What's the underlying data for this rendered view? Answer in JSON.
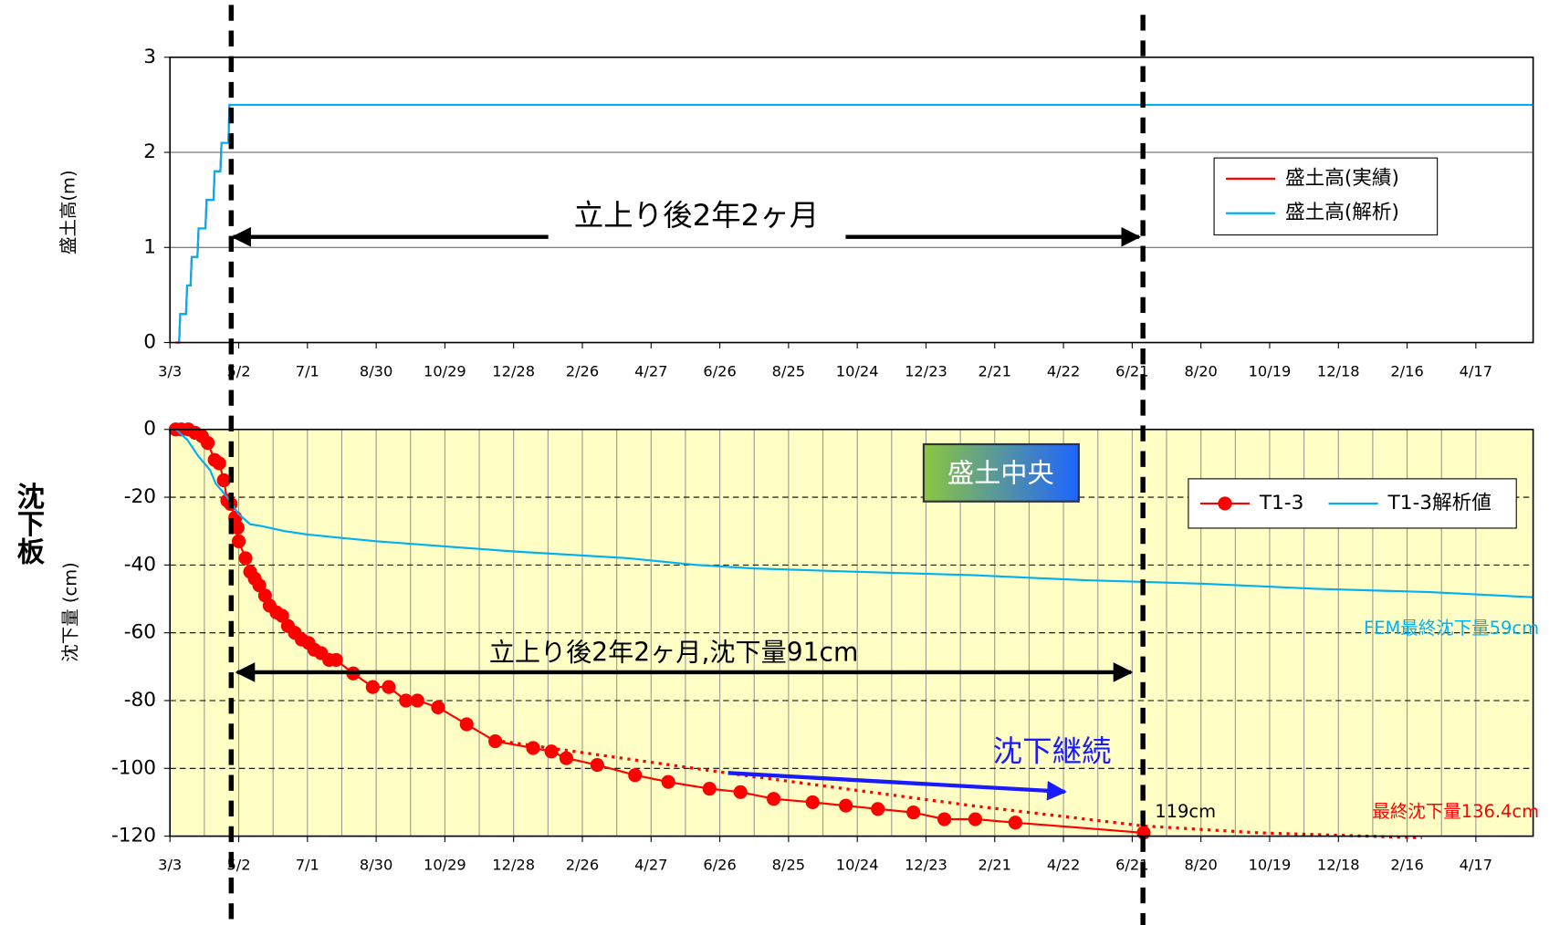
{
  "chart_data": [
    {
      "type": "line",
      "ylabel": "盛土高(m)",
      "xlim": [
        0,
        1190
      ],
      "xticks": [
        {
          "value": 0,
          "label": "3/3"
        },
        {
          "value": 60,
          "label": "5/2"
        },
        {
          "value": 120,
          "label": "7/1"
        },
        {
          "value": 180,
          "label": "8/30"
        },
        {
          "value": 240,
          "label": "10/29"
        },
        {
          "value": 300,
          "label": "12/28"
        },
        {
          "value": 360,
          "label": "2/26"
        },
        {
          "value": 420,
          "label": "4/27"
        },
        {
          "value": 480,
          "label": "6/26"
        },
        {
          "value": 540,
          "label": "8/25"
        },
        {
          "value": 600,
          "label": "10/24"
        },
        {
          "value": 660,
          "label": "12/23"
        },
        {
          "value": 720,
          "label": "2/21"
        },
        {
          "value": 780,
          "label": "4/22"
        },
        {
          "value": 840,
          "label": "6/21"
        },
        {
          "value": 900,
          "label": "8/20"
        },
        {
          "value": 960,
          "label": "10/19"
        },
        {
          "value": 1020,
          "label": "12/18"
        },
        {
          "value": 1080,
          "label": "2/16"
        },
        {
          "value": 1140,
          "label": "4/17"
        }
      ],
      "ylim": [
        0,
        3
      ],
      "yticks": [
        0,
        1,
        2,
        3
      ],
      "grid": "solid",
      "series": [
        {
          "name": "盛土高(実績)",
          "color": "#ff0000",
          "x": [
            5,
            8,
            9,
            14,
            15,
            18,
            19,
            24,
            25,
            31,
            32,
            38,
            39,
            44,
            45,
            51,
            52,
            53
          ],
          "values": [
            0,
            0,
            0.3,
            0.3,
            0.6,
            0.6,
            0.9,
            0.9,
            1.2,
            1.2,
            1.5,
            1.5,
            1.8,
            1.8,
            2.1,
            2.1,
            2.5,
            2.5
          ]
        },
        {
          "name": "盛土高(解析)",
          "color": "#00b0f0",
          "x": [
            8,
            9,
            14,
            15,
            18,
            19,
            24,
            25,
            31,
            32,
            38,
            39,
            44,
            45,
            51,
            52,
            1190
          ],
          "values": [
            0,
            0.3,
            0.3,
            0.6,
            0.6,
            0.9,
            0.9,
            1.2,
            1.2,
            1.5,
            1.5,
            1.8,
            1.8,
            2.1,
            2.1,
            2.5,
            2.5
          ]
        }
      ],
      "annotations": [
        "立上り後2年2ヶ月"
      ]
    },
    {
      "type": "line",
      "ylabel": "沈下量 (cm)",
      "side_label": "沈下板",
      "background": "#ffffc5",
      "xlim": [
        0,
        1190
      ],
      "xticks": [
        {
          "value": 0,
          "label": "3/3"
        },
        {
          "value": 60,
          "label": "5/2"
        },
        {
          "value": 120,
          "label": "7/1"
        },
        {
          "value": 180,
          "label": "8/30"
        },
        {
          "value": 240,
          "label": "10/29"
        },
        {
          "value": 300,
          "label": "12/28"
        },
        {
          "value": 360,
          "label": "2/26"
        },
        {
          "value": 420,
          "label": "4/27"
        },
        {
          "value": 480,
          "label": "6/26"
        },
        {
          "value": 540,
          "label": "8/25"
        },
        {
          "value": 600,
          "label": "10/24"
        },
        {
          "value": 660,
          "label": "12/23"
        },
        {
          "value": 720,
          "label": "2/21"
        },
        {
          "value": 780,
          "label": "4/22"
        },
        {
          "value": 840,
          "label": "6/21"
        },
        {
          "value": 900,
          "label": "8/20"
        },
        {
          "value": 960,
          "label": "10/19"
        },
        {
          "value": 1020,
          "label": "12/18"
        },
        {
          "value": 1080,
          "label": "2/16"
        },
        {
          "value": 1140,
          "label": "4/17"
        }
      ],
      "ylim": [
        -120,
        0
      ],
      "yticks": [
        0,
        -20,
        -40,
        -60,
        -80,
        -100,
        -120
      ],
      "grid": "dashed",
      "series": [
        {
          "name": "T1-3",
          "color": "#ff0000",
          "marker": "circle",
          "x": [
            5,
            10,
            16,
            22,
            28,
            33,
            39,
            43,
            47,
            50,
            53,
            57,
            59,
            60,
            66,
            70,
            74,
            78,
            83,
            87,
            93,
            98,
            103,
            109,
            115,
            121,
            126,
            132,
            139,
            145,
            160,
            177,
            191,
            206,
            216,
            234,
            259,
            284,
            317,
            333,
            346,
            373,
            406,
            435,
            471,
            498,
            527,
            561,
            590,
            618,
            649,
            676,
            703,
            738,
            850
          ],
          "values": [
            0,
            0,
            0,
            -1,
            -2,
            -4,
            -9,
            -10,
            -15,
            -21,
            -22,
            -26,
            -29,
            -33,
            -38,
            -42,
            -44,
            -46,
            -49,
            -52,
            -54,
            -55,
            -58,
            -60,
            -62,
            -63,
            -65,
            -66,
            -68,
            -68,
            -72,
            -76,
            -76,
            -80,
            -80,
            -82,
            -87,
            -92,
            -94,
            -95,
            -97,
            -99,
            -102,
            -104,
            -106,
            -107,
            -109,
            -110,
            -111,
            -112,
            -113,
            -115,
            -115,
            -116,
            -119
          ]
        },
        {
          "name": "T1-3解析値",
          "color": "#00b0f0",
          "x": [
            5,
            15,
            25,
            35,
            40,
            50,
            60,
            70,
            80,
            100,
            120,
            150,
            180,
            220,
            260,
            300,
            350,
            400,
            460,
            510,
            600,
            700,
            800,
            900,
            1000,
            1100,
            1190
          ],
          "values": [
            0,
            -3,
            -8,
            -12,
            -16,
            -20,
            -25,
            -28,
            -28.5,
            -30,
            -31,
            -32,
            -33,
            -34,
            -35,
            -36,
            -37,
            -38,
            -40,
            -41,
            -42,
            -43,
            -44.5,
            -45.5,
            -47,
            -48,
            -49.5
          ]
        },
        {
          "color": "#ff0000",
          "dash": "dotted",
          "x": [
            290,
            500,
            700,
            850,
            950,
            1093
          ],
          "values": [
            -92,
            -102,
            -111,
            -117,
            -119,
            -120.5
          ]
        }
      ],
      "annotations": [
        "盛土中央",
        "立上り後2年2ヶ月,沈下量91cm",
        "沈下継続",
        "119cm",
        "最終沈下量136.4cm",
        "FEM最終沈下量59cm"
      ]
    }
  ]
}
